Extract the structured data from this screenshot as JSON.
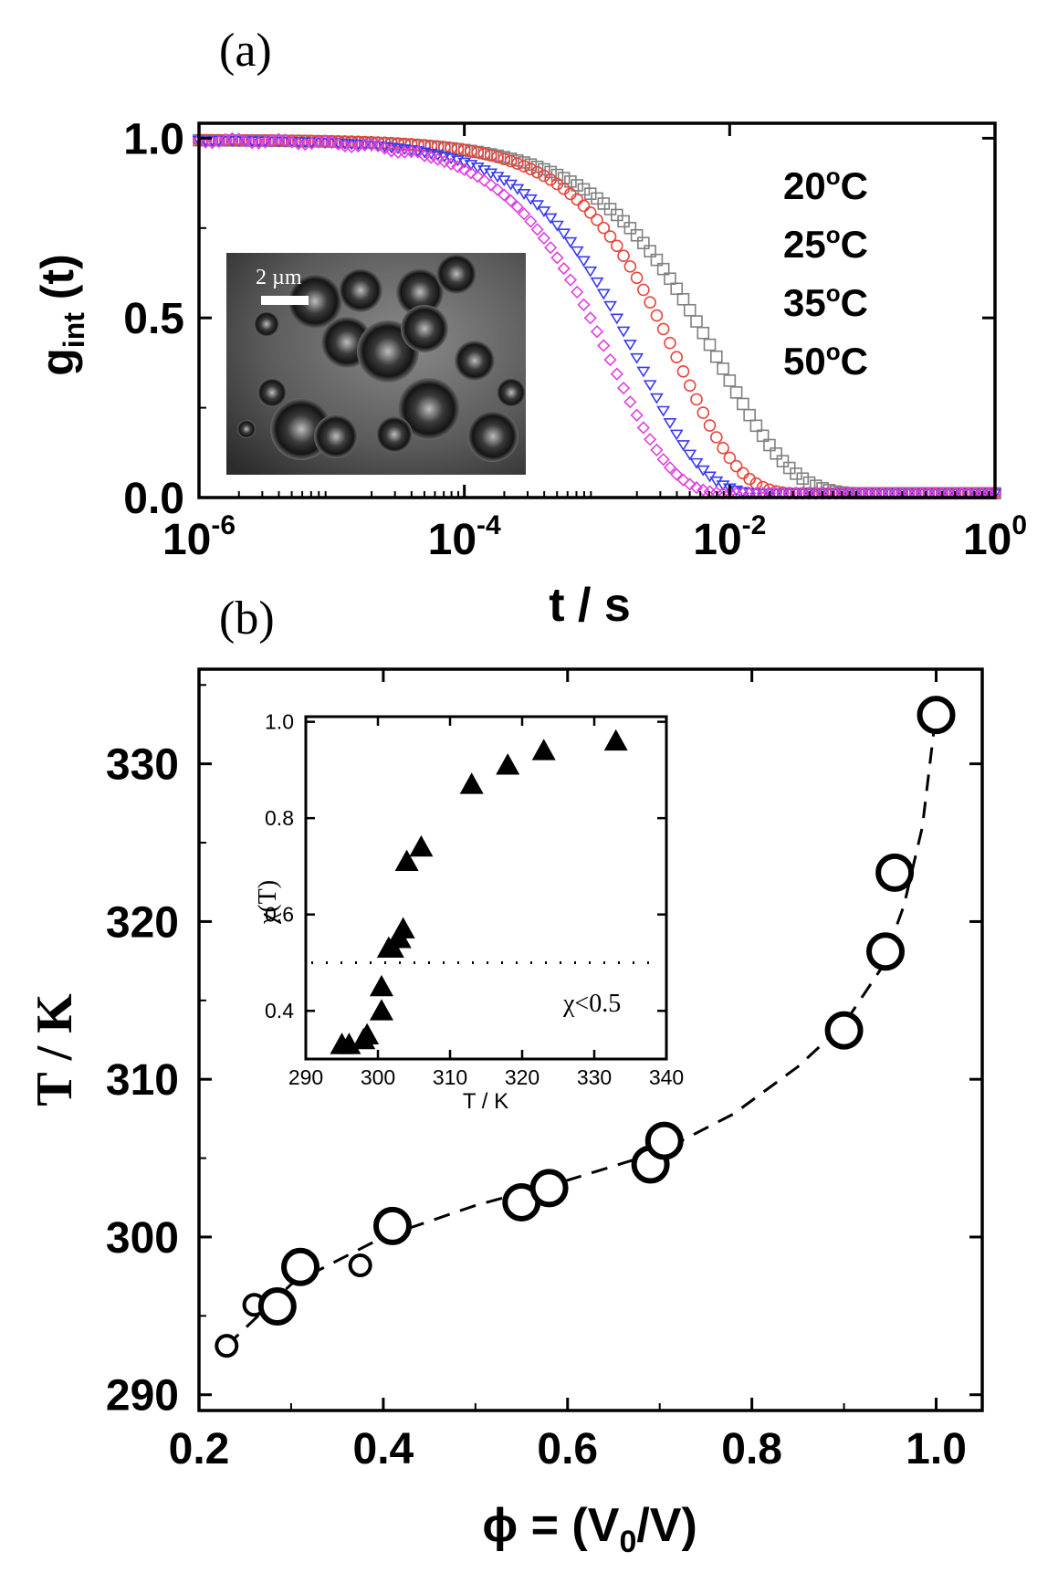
{
  "chart_data": [
    {
      "panel_label": "(a)",
      "type": "scatter",
      "xlabel": "t / s",
      "ylabel_main": "g",
      "ylabel_sub": "int",
      "ylabel_tail": " (t)",
      "xscale": "log",
      "xlim": [
        1e-06,
        1
      ],
      "ylim": [
        0,
        1
      ],
      "x_ticks": [
        {
          "base": "10",
          "exp": "-6",
          "value": 1e-06
        },
        {
          "base": "10",
          "exp": "-4",
          "value": 0.0001
        },
        {
          "base": "10",
          "exp": "-2",
          "value": 0.01
        },
        {
          "base": "10",
          "exp": "0",
          "value": 1
        }
      ],
      "y_ticks": [
        "0.0",
        "0.5",
        "1.0"
      ],
      "legend_placement": "top-right",
      "series": [
        {
          "name": "20ºC",
          "label_main": "20",
          "label_sup": "o",
          "label_unit": "C",
          "marker": "square",
          "color": "#808080",
          "tau": 0.0085,
          "beta": 0.8
        },
        {
          "name": "25ºC",
          "label_main": "25",
          "label_sup": "o",
          "label_unit": "C",
          "marker": "circle",
          "color": "#e8453c",
          "tau": 0.0042,
          "beta": 0.95
        },
        {
          "name": "35ºC",
          "label_main": "35",
          "label_sup": "o",
          "label_unit": "C",
          "marker": "triangle-down",
          "color": "#3a3af0",
          "tau": 0.0021,
          "beta": 0.9
        },
        {
          "name": "50ºC",
          "label_main": "50",
          "label_sup": "o",
          "label_unit": "C",
          "marker": "diamond",
          "color": "#e040e0",
          "tau": 0.0013,
          "beta": 0.95
        }
      ],
      "inset": {
        "type": "micrograph",
        "scale_bar_label": "2 µm"
      }
    },
    {
      "panel_label": "(b)",
      "type": "scatter",
      "xlabel_main": "ϕ = (V",
      "xlabel_sub": "0",
      "xlabel_tail": "/V)",
      "ylabel": "T / K",
      "xlim": [
        0.2,
        1.05
      ],
      "ylim": [
        289,
        336
      ],
      "x_ticks": [
        "0.2",
        "0.4",
        "0.6",
        "0.8",
        "1.0"
      ],
      "y_ticks": [
        "290",
        "300",
        "310",
        "320",
        "330"
      ],
      "points": [
        {
          "x": 0.23,
          "y": 293.1,
          "size": "small"
        },
        {
          "x": 0.26,
          "y": 295.7,
          "size": "small"
        },
        {
          "x": 0.285,
          "y": 295.6,
          "size": "large"
        },
        {
          "x": 0.31,
          "y": 298.1,
          "size": "large"
        },
        {
          "x": 0.375,
          "y": 298.2,
          "size": "small"
        },
        {
          "x": 0.41,
          "y": 300.7,
          "size": "large"
        },
        {
          "x": 0.55,
          "y": 302.2,
          "size": "large"
        },
        {
          "x": 0.58,
          "y": 303.1,
          "size": "large"
        },
        {
          "x": 0.69,
          "y": 304.6,
          "size": "large"
        },
        {
          "x": 0.705,
          "y": 306.1,
          "size": "large"
        },
        {
          "x": 0.9,
          "y": 313.1,
          "size": "large"
        },
        {
          "x": 0.945,
          "y": 318.1,
          "size": "large"
        },
        {
          "x": 0.955,
          "y": 323.1,
          "size": "large"
        },
        {
          "x": 1.0,
          "y": 333.1,
          "size": "large"
        }
      ],
      "fit_line": "dashed",
      "inset": {
        "type": "scatter",
        "xlabel": "T / K",
        "ylabel": "χ(T)",
        "xlim": [
          290,
          340
        ],
        "ylim": [
          0.3,
          1.0
        ],
        "x_ticks": [
          "290",
          "300",
          "310",
          "320",
          "330",
          "340"
        ],
        "y_ticks": [
          "0.4",
          "0.6",
          "0.8",
          "1.0"
        ],
        "threshold": 0.5,
        "threshold_label": "χ<0.5",
        "points": [
          {
            "x": 295,
            "y": 0.33
          },
          {
            "x": 296,
            "y": 0.33
          },
          {
            "x": 298,
            "y": 0.34
          },
          {
            "x": 298.5,
            "y": 0.35
          },
          {
            "x": 300.5,
            "y": 0.4
          },
          {
            "x": 300.5,
            "y": 0.45
          },
          {
            "x": 301.5,
            "y": 0.53
          },
          {
            "x": 302,
            "y": 0.53
          },
          {
            "x": 303,
            "y": 0.55
          },
          {
            "x": 303.5,
            "y": 0.57
          },
          {
            "x": 304,
            "y": 0.71
          },
          {
            "x": 306,
            "y": 0.74
          },
          {
            "x": 313,
            "y": 0.87
          },
          {
            "x": 318,
            "y": 0.91
          },
          {
            "x": 323,
            "y": 0.94
          },
          {
            "x": 333,
            "y": 0.96
          }
        ]
      }
    }
  ]
}
